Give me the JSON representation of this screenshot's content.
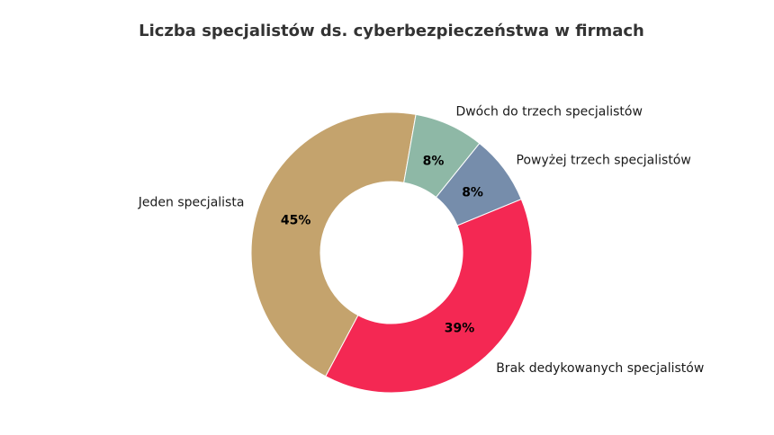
{
  "chart_data": {
    "type": "pie",
    "title": "Liczba specjalistów ds. cyberbezpieczeństwa w firmach",
    "donut": true,
    "slices": [
      {
        "label": "Jeden specjalista",
        "value": 45,
        "pct_label": "45%",
        "color": "#C4A36D"
      },
      {
        "label": "Brak dedykowanych specjalistów",
        "value": 39,
        "pct_label": "39%",
        "color": "#F42853"
      },
      {
        "label": "Powyżej trzech specjalistów",
        "value": 8,
        "pct_label": "8%",
        "color": "#768DAB"
      },
      {
        "label": "Dwóch do trzech specjalistów",
        "value": 8,
        "pct_label": "8%",
        "color": "#8EB8A6"
      }
    ]
  }
}
